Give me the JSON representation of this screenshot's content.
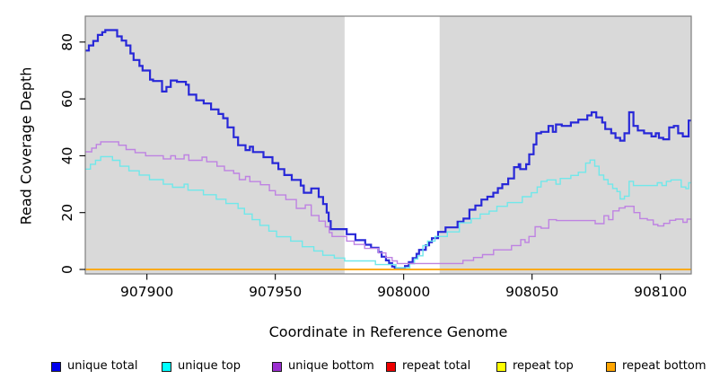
{
  "chart_data": {
    "type": "line",
    "subtype": "step-after-coverage-plot",
    "title": "",
    "xlabel": "Coordinate in Reference Genome",
    "ylabel": "Read Coverage Depth",
    "xlim": [
      907876,
      908112
    ],
    "ylim": [
      -1.6,
      89
    ],
    "xticks": [
      907900,
      907950,
      908000,
      908050,
      908100
    ],
    "yticks": [
      0,
      20,
      40,
      60,
      80
    ],
    "grid": false,
    "plot_background": "#d9d9d9",
    "box_color": "#7f7f7f",
    "tick_color": "#000000",
    "highlight_region": {
      "x0": 907977,
      "x1": 908014,
      "color": "#ffffff",
      "note": "white unmasked band"
    },
    "legend_position": "bottom",
    "series": [
      {
        "name": "unique total",
        "line_color": "#2828d8",
        "legend_color": "#0000ee",
        "line_width": 2.2,
        "steps": [
          [
            907876,
            77
          ],
          [
            907877.4,
            78.8
          ],
          [
            907879.1,
            80.4
          ],
          [
            907880.9,
            82.5
          ],
          [
            907882.6,
            83.5
          ],
          [
            907883.8,
            84.2
          ],
          [
            907888.4,
            82
          ],
          [
            907890.2,
            80.5
          ],
          [
            907891.9,
            78.8
          ],
          [
            907893.6,
            76
          ],
          [
            907894.8,
            73.7
          ],
          [
            907897.1,
            71.6
          ],
          [
            907898.3,
            70
          ],
          [
            907901.2,
            66.8
          ],
          [
            907902.4,
            66.3
          ],
          [
            907905.9,
            62.6
          ],
          [
            907907.6,
            64.2
          ],
          [
            907909.3,
            66.5
          ],
          [
            907911.7,
            66
          ],
          [
            907915.2,
            65
          ],
          [
            907916.3,
            61.5
          ],
          [
            907919.2,
            59.5
          ],
          [
            907922.1,
            58.4
          ],
          [
            907925,
            56.3
          ],
          [
            907927.9,
            54.7
          ],
          [
            907929.7,
            53.2
          ],
          [
            907931.4,
            50
          ],
          [
            907933.8,
            46.5
          ],
          [
            907935.5,
            43.7
          ],
          [
            907938.4,
            42
          ],
          [
            907940.1,
            43.2
          ],
          [
            907941.3,
            41.3
          ],
          [
            907945.4,
            39.5
          ],
          [
            907948.9,
            37.4
          ],
          [
            907951.2,
            35.3
          ],
          [
            907953.5,
            33.2
          ],
          [
            907956.4,
            31.5
          ],
          [
            907959.9,
            29.5
          ],
          [
            907961.1,
            27
          ],
          [
            907964,
            28.5
          ],
          [
            907966.9,
            25.5
          ],
          [
            907968.6,
            23
          ],
          [
            907970,
            20
          ],
          [
            907970.8,
            17
          ],
          [
            907971.6,
            14.2
          ],
          [
            907977.8,
            12.4
          ],
          [
            907981.2,
            10.3
          ],
          [
            907985,
            8.7
          ],
          [
            907987.3,
            7.6
          ],
          [
            907990.2,
            6.1
          ],
          [
            907991.4,
            4.5
          ],
          [
            907993.1,
            3.2
          ],
          [
            907994.3,
            2.2
          ],
          [
            907995.5,
            1
          ],
          [
            907996.5,
            0.2
          ],
          [
            908000.5,
            1.2
          ],
          [
            908002,
            2.6
          ],
          [
            908003.5,
            4
          ],
          [
            908005,
            5.5
          ],
          [
            908006,
            6.9
          ],
          [
            908008.6,
            8.5
          ],
          [
            908009.9,
            9.6
          ],
          [
            908011,
            11
          ],
          [
            908013.4,
            13.2
          ],
          [
            908016.3,
            14.8
          ],
          [
            908021,
            16.8
          ],
          [
            908023.3,
            17.9
          ],
          [
            908025.6,
            21
          ],
          [
            908027.9,
            22.5
          ],
          [
            908030.3,
            24.6
          ],
          [
            908032.6,
            25.6
          ],
          [
            908034.9,
            27
          ],
          [
            908036.7,
            28.6
          ],
          [
            908038.4,
            30
          ],
          [
            908040.7,
            32
          ],
          [
            908043,
            36
          ],
          [
            908044.8,
            37
          ],
          [
            908045.4,
            35.3
          ],
          [
            908047.7,
            37
          ],
          [
            908048.9,
            40.5
          ],
          [
            908050.6,
            44
          ],
          [
            908051.7,
            47.9
          ],
          [
            908053.5,
            48.4
          ],
          [
            908056.4,
            50.5
          ],
          [
            908058.1,
            48.4
          ],
          [
            908059.3,
            51
          ],
          [
            908061.6,
            50.5
          ],
          [
            908065.1,
            51.7
          ],
          [
            908068,
            52.7
          ],
          [
            908071.5,
            54.2
          ],
          [
            908073.2,
            55.3
          ],
          [
            908075,
            53.5
          ],
          [
            908077.3,
            51.7
          ],
          [
            908078.5,
            49.4
          ],
          [
            908080.8,
            47.9
          ],
          [
            908082.5,
            46.3
          ],
          [
            908084.3,
            45.3
          ],
          [
            908086,
            47.9
          ],
          [
            908087.8,
            55.3
          ],
          [
            908089.5,
            50.5
          ],
          [
            908091.2,
            48.9
          ],
          [
            908093.6,
            47.9
          ],
          [
            908096.5,
            46.8
          ],
          [
            908098.2,
            47.9
          ],
          [
            908099.4,
            46.3
          ],
          [
            908101.1,
            45.8
          ],
          [
            908103.4,
            50
          ],
          [
            908105.2,
            50.5
          ],
          [
            908106.9,
            47.9
          ],
          [
            908108.7,
            46.8
          ],
          [
            908111,
            52.4
          ],
          [
            908112,
            52.4
          ]
        ]
      },
      {
        "name": "unique top",
        "line_color": "#70e8ea",
        "legend_color": "#00ffff",
        "line_width": 1.4,
        "steps": [
          [
            907876,
            35.3
          ],
          [
            907878,
            37
          ],
          [
            907880,
            38.4
          ],
          [
            907882,
            39.7
          ],
          [
            907886.6,
            38.4
          ],
          [
            907889.5,
            36.3
          ],
          [
            907893,
            34.7
          ],
          [
            907897,
            33.2
          ],
          [
            907901,
            31.6
          ],
          [
            907906.4,
            30
          ],
          [
            907910,
            28.9
          ],
          [
            907914.5,
            30
          ],
          [
            907916,
            27.9
          ],
          [
            907922,
            26.3
          ],
          [
            907927,
            24.7
          ],
          [
            907930.8,
            23.2
          ],
          [
            907935.5,
            21.5
          ],
          [
            907938,
            19.5
          ],
          [
            907941,
            17.5
          ],
          [
            907944,
            15.5
          ],
          [
            907947.5,
            13.5
          ],
          [
            907950.5,
            11.5
          ],
          [
            907956,
            10
          ],
          [
            907960.5,
            8
          ],
          [
            907965,
            6.5
          ],
          [
            907968.5,
            5
          ],
          [
            907973,
            4
          ],
          [
            907977,
            3
          ],
          [
            907989,
            1.7
          ],
          [
            907997,
            0.6
          ],
          [
            908002.4,
            2
          ],
          [
            908004.2,
            3.7
          ],
          [
            908005.5,
            4.8
          ],
          [
            908007.5,
            8.4
          ],
          [
            908009.3,
            10
          ],
          [
            908012.2,
            11.6
          ],
          [
            908017,
            13.2
          ],
          [
            908021.7,
            16.4
          ],
          [
            908026.3,
            17.9
          ],
          [
            908029.8,
            19.5
          ],
          [
            908033.3,
            20.5
          ],
          [
            908036.3,
            22.2
          ],
          [
            908040.4,
            23.5
          ],
          [
            908046.2,
            25.6
          ],
          [
            908049.7,
            27
          ],
          [
            908052,
            29
          ],
          [
            908053.5,
            31
          ],
          [
            908055.8,
            31.5
          ],
          [
            908059.3,
            30
          ],
          [
            908061,
            32
          ],
          [
            908065.1,
            33.1
          ],
          [
            908068,
            34.2
          ],
          [
            908070.9,
            37.4
          ],
          [
            908072.6,
            38.5
          ],
          [
            908074.4,
            36.3
          ],
          [
            908076.1,
            33.2
          ],
          [
            908077.9,
            31.6
          ],
          [
            908079.6,
            30
          ],
          [
            908081.4,
            28.5
          ],
          [
            908083.1,
            27.4
          ],
          [
            908084.3,
            24.8
          ],
          [
            908086,
            25.8
          ],
          [
            908087.8,
            31
          ],
          [
            908089.5,
            29.5
          ],
          [
            908098.8,
            30.5
          ],
          [
            908100.6,
            29.5
          ],
          [
            908102.3,
            31
          ],
          [
            908104.1,
            31.5
          ],
          [
            908108.1,
            29
          ],
          [
            908109.9,
            28.4
          ],
          [
            908111,
            30.5
          ],
          [
            908112,
            30.5
          ]
        ]
      },
      {
        "name": "unique bottom",
        "line_color": "#be82e2",
        "legend_color": "#9b2fd0",
        "line_width": 1.4,
        "steps": [
          [
            907876,
            41.4
          ],
          [
            907878.5,
            42.7
          ],
          [
            907880.3,
            44
          ],
          [
            907882,
            44.9
          ],
          [
            907889,
            43.7
          ],
          [
            907891.9,
            42.2
          ],
          [
            907895.4,
            41.1
          ],
          [
            907899.5,
            40
          ],
          [
            907906.4,
            38.9
          ],
          [
            907909.3,
            40
          ],
          [
            907911.1,
            38.9
          ],
          [
            907914.5,
            40.3
          ],
          [
            907916.3,
            38.4
          ],
          [
            907921.5,
            39.5
          ],
          [
            907923.3,
            37.9
          ],
          [
            907927.3,
            36.3
          ],
          [
            907930.2,
            34.8
          ],
          [
            907933.8,
            33.8
          ],
          [
            907936,
            31.6
          ],
          [
            907938.4,
            32.7
          ],
          [
            907940.1,
            30.9
          ],
          [
            907944.2,
            29.8
          ],
          [
            907947.7,
            27.7
          ],
          [
            907950,
            26.2
          ],
          [
            907954.1,
            24.6
          ],
          [
            907958.2,
            21.5
          ],
          [
            907961.7,
            22.7
          ],
          [
            907964,
            19
          ],
          [
            907967,
            17
          ],
          [
            907969.5,
            15
          ],
          [
            907971,
            13
          ],
          [
            907972.1,
            11.6
          ],
          [
            907977.8,
            10
          ],
          [
            907980.7,
            8.8
          ],
          [
            907984.8,
            7.4
          ],
          [
            907990.2,
            5.8
          ],
          [
            907993.1,
            4.2
          ],
          [
            907995.5,
            3
          ],
          [
            907997.5,
            2.1
          ],
          [
            908023.1,
            3.2
          ],
          [
            908027.2,
            4.2
          ],
          [
            908030.7,
            5.2
          ],
          [
            908035,
            6.9
          ],
          [
            908042,
            8.4
          ],
          [
            908045.6,
            10.5
          ],
          [
            908047.3,
            9.5
          ],
          [
            908048.8,
            11.6
          ],
          [
            908051.2,
            15
          ],
          [
            908053.5,
            14.5
          ],
          [
            908056.5,
            17.5
          ],
          [
            908059.5,
            17.2
          ],
          [
            908074.6,
            16.1
          ],
          [
            908078,
            18.9
          ],
          [
            908079.8,
            17.5
          ],
          [
            908081.5,
            20.6
          ],
          [
            908083.9,
            21.6
          ],
          [
            908086.2,
            22.2
          ],
          [
            908089.7,
            20
          ],
          [
            908092,
            17.9
          ],
          [
            908094.9,
            17.4
          ],
          [
            908097.2,
            15.8
          ],
          [
            908099,
            15.3
          ],
          [
            908101.3,
            16.2
          ],
          [
            908103.6,
            17.3
          ],
          [
            908105.9,
            17.7
          ],
          [
            908108.8,
            16.6
          ],
          [
            908110.4,
            17.7
          ],
          [
            908112,
            17.7
          ]
        ]
      },
      {
        "name": "repeat total",
        "line_color": "#e02020",
        "legend_color": "#ee0000",
        "line_width": 1.4,
        "steps": [
          [
            907876,
            0
          ],
          [
            908112,
            0
          ]
        ]
      },
      {
        "name": "repeat top",
        "line_color": "#f0f000",
        "legend_color": "#ffff00",
        "line_width": 1.4,
        "steps": [
          [
            907876,
            0
          ],
          [
            908112,
            0
          ]
        ]
      },
      {
        "name": "repeat bottom",
        "line_color": "#ffa510",
        "legend_color": "#ffa500",
        "line_width": 1.6,
        "steps": [
          [
            907876,
            0
          ],
          [
            908112,
            0
          ]
        ]
      }
    ]
  },
  "legend": {
    "items": [
      {
        "label": "unique total",
        "color": "#0000ee"
      },
      {
        "label": "unique top",
        "color": "#00ffff"
      },
      {
        "label": "unique bottom",
        "color": "#9b2fd0"
      },
      {
        "label": "repeat total",
        "color": "#ee0000"
      },
      {
        "label": "repeat top",
        "color": "#ffff00"
      },
      {
        "label": "repeat bottom",
        "color": "#ffa500"
      }
    ]
  }
}
